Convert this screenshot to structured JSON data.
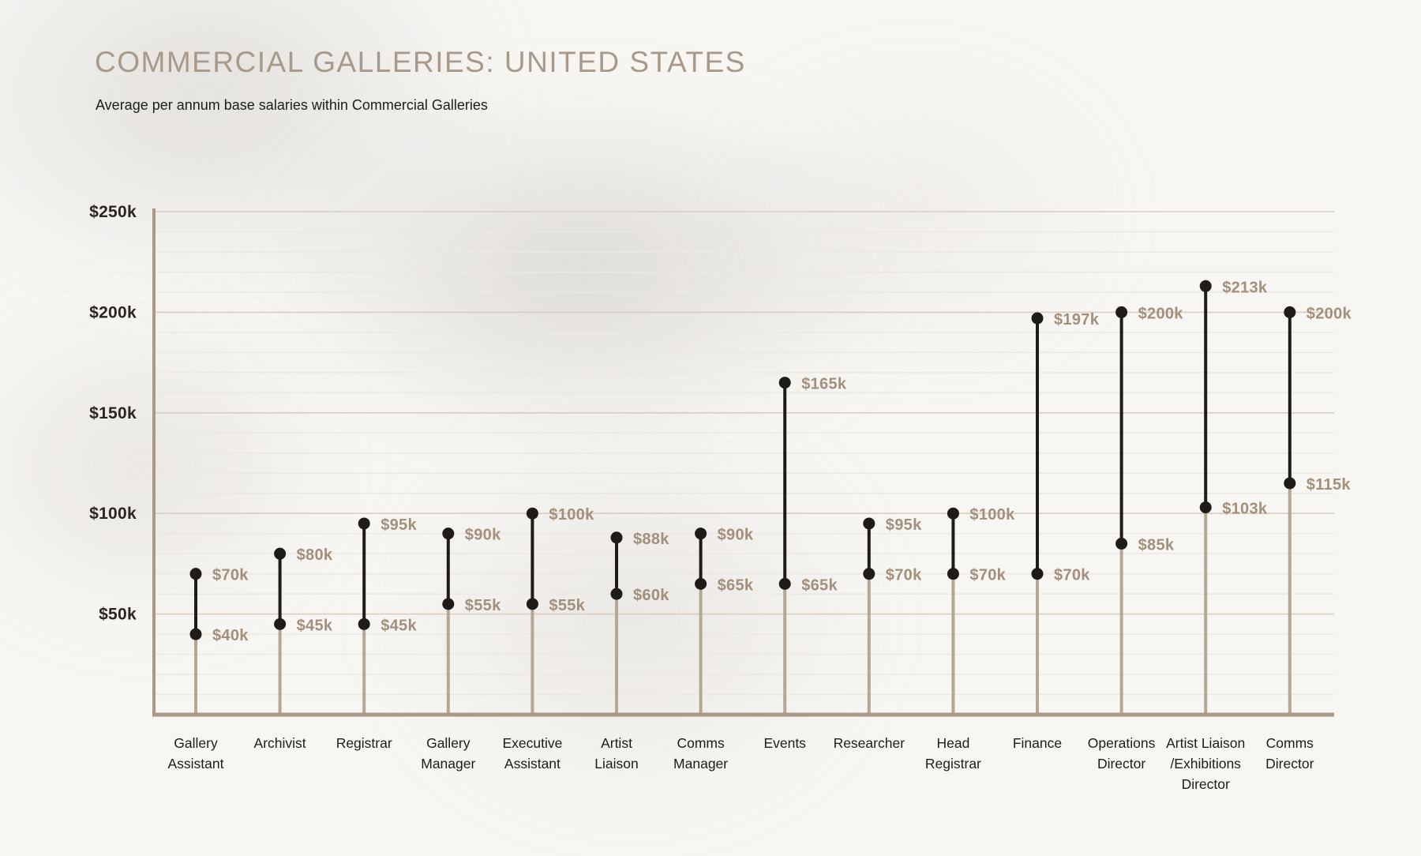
{
  "header": {
    "title": "COMMERCIAL GALLERIES: UNITED STATES",
    "subtitle": "Average per annum base salaries within Commercial Galleries"
  },
  "chart_data": {
    "type": "dumbbell-range",
    "title": "COMMERCIAL GALLERIES: UNITED STATES",
    "subtitle": "Average per annum base salaries within Commercial Galleries",
    "value_unit": "USD thousands per annum",
    "ylim": [
      0,
      250
    ],
    "y_tick_values": [
      50,
      100,
      150,
      200,
      250
    ],
    "y_tick_labels": [
      "$50k",
      "$100k",
      "$150k",
      "$200k",
      "$250k"
    ],
    "major_grid_step": 50,
    "minor_grid_step": 10,
    "grid": "on",
    "legend": "none",
    "categories": [
      "Gallery Assistant",
      "Archivist",
      "Registrar",
      "Gallery Manager",
      "Executive Assistant",
      "Artist Liaison",
      "Comms Manager",
      "Events",
      "Researcher",
      "Head Registrar",
      "Finance",
      "Operations Director",
      "Artist Liaison /Exhibitions Director",
      "Comms Director"
    ],
    "series": [
      {
        "category_lines": [
          "Gallery",
          "Assistant"
        ],
        "min": 40,
        "max": 70,
        "min_label": "$40k",
        "max_label": "$70k"
      },
      {
        "category_lines": [
          "Archivist"
        ],
        "min": 45,
        "max": 80,
        "min_label": "$45k",
        "max_label": "$80k"
      },
      {
        "category_lines": [
          "Registrar"
        ],
        "min": 45,
        "max": 95,
        "min_label": "$45k",
        "max_label": "$95k"
      },
      {
        "category_lines": [
          "Gallery",
          "Manager"
        ],
        "min": 55,
        "max": 90,
        "min_label": "$55k",
        "max_label": "$90k"
      },
      {
        "category_lines": [
          "Executive",
          "Assistant"
        ],
        "min": 55,
        "max": 100,
        "min_label": "$55k",
        "max_label": "$100k"
      },
      {
        "category_lines": [
          "Artist",
          "Liaison"
        ],
        "min": 60,
        "max": 88,
        "min_label": "$60k",
        "max_label": "$88k"
      },
      {
        "category_lines": [
          "Comms",
          "Manager"
        ],
        "min": 65,
        "max": 90,
        "min_label": "$65k",
        "max_label": "$90k"
      },
      {
        "category_lines": [
          "Events"
        ],
        "min": 65,
        "max": 165,
        "min_label": "$65k",
        "max_label": "$165k"
      },
      {
        "category_lines": [
          "Researcher"
        ],
        "min": 70,
        "max": 95,
        "min_label": "$70k",
        "max_label": "$95k"
      },
      {
        "category_lines": [
          "Head",
          "Registrar"
        ],
        "min": 70,
        "max": 100,
        "min_label": "$70k",
        "max_label": "$100k"
      },
      {
        "category_lines": [
          "Finance"
        ],
        "min": 70,
        "max": 197,
        "min_label": "$70k",
        "max_label": "$197k"
      },
      {
        "category_lines": [
          "Operations",
          "Director"
        ],
        "min": 85,
        "max": 200,
        "min_label": "$85k",
        "max_label": "$200k"
      },
      {
        "category_lines": [
          "Artist Liaison",
          "/Exhibitions",
          "Director"
        ],
        "min": 103,
        "max": 213,
        "min_label": "$103k",
        "max_label": "$213k"
      },
      {
        "category_lines": [
          "Comms",
          "Director"
        ],
        "min": 115,
        "max": 200,
        "min_label": "$115k",
        "max_label": "$200k"
      }
    ],
    "colors": {
      "background": "#f8f6f3",
      "title_text": "#a89a8a",
      "subtitle_text": "#1e1c19",
      "dot_and_range": "#1f1b17",
      "stem": "#b5a797",
      "axis": "#a89a87",
      "grid_major": "#d8cdc0",
      "grid_minor": "#ece7e1",
      "value_label_text": "#a28f7c",
      "tick_label_text": "#2b2520",
      "category_label_text": "#1e1c19"
    }
  }
}
